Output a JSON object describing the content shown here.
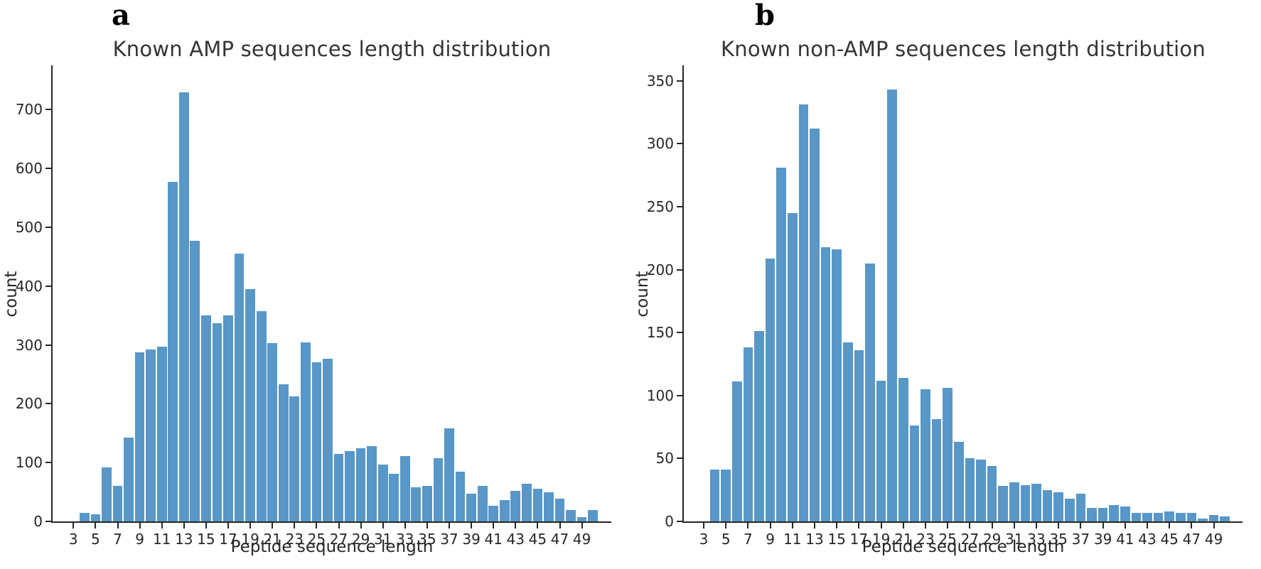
{
  "figure": {
    "background": "#ffffff",
    "text_color": "#262626",
    "bar_color": "#5897c7",
    "panels": [
      {
        "letter": "a"
      },
      {
        "letter": "b"
      }
    ]
  },
  "chart_data": [
    {
      "type": "bar",
      "title": "Known AMP sequences length distribution",
      "xlabel": "Peptide sequence length",
      "ylabel": "count",
      "bar_color": "#5897c7",
      "x": [
        4,
        5,
        6,
        7,
        8,
        9,
        10,
        11,
        12,
        13,
        14,
        15,
        16,
        17,
        18,
        19,
        20,
        21,
        22,
        23,
        24,
        25,
        26,
        27,
        28,
        29,
        30,
        31,
        32,
        33,
        34,
        35,
        36,
        37,
        38,
        39,
        40,
        41,
        42,
        43,
        44,
        45,
        46,
        47,
        48,
        49,
        50
      ],
      "values": [
        15,
        12,
        92,
        60,
        142,
        288,
        292,
        297,
        577,
        730,
        477,
        350,
        337,
        350,
        455,
        395,
        358,
        303,
        233,
        212,
        304,
        270,
        277,
        115,
        119,
        125,
        128,
        97,
        81,
        111,
        58,
        60,
        107,
        158,
        85,
        47,
        60,
        27,
        36,
        52,
        64,
        56,
        49,
        39,
        19,
        7,
        19
      ],
      "xticks": [
        3,
        5,
        7,
        9,
        11,
        13,
        15,
        17,
        19,
        21,
        23,
        25,
        27,
        29,
        31,
        33,
        35,
        37,
        39,
        41,
        43,
        45,
        47,
        49
      ],
      "yticks": [
        0,
        100,
        200,
        300,
        400,
        500,
        600,
        700
      ],
      "ylim": [
        0,
        775
      ],
      "xlim": [
        2.5,
        51.5
      ],
      "grid": false,
      "legend": null
    },
    {
      "type": "bar",
      "title": "Known non-AMP sequences length distribution",
      "xlabel": "Peptide sequence length",
      "ylabel": "count",
      "bar_color": "#5897c7",
      "x": [
        4,
        5,
        6,
        7,
        8,
        9,
        10,
        11,
        12,
        13,
        14,
        15,
        16,
        17,
        18,
        19,
        20,
        21,
        22,
        23,
        24,
        25,
        26,
        27,
        28,
        29,
        30,
        31,
        32,
        33,
        34,
        35,
        36,
        37,
        38,
        39,
        40,
        41,
        42,
        43,
        44,
        45,
        46,
        47,
        48,
        49,
        50
      ],
      "values": [
        41,
        41,
        111,
        138,
        151,
        209,
        281,
        245,
        331,
        312,
        218,
        216,
        142,
        136,
        205,
        112,
        343,
        114,
        76,
        105,
        81,
        106,
        63,
        50,
        49,
        44,
        28,
        31,
        29,
        30,
        25,
        23,
        18,
        22,
        11,
        11,
        13,
        12,
        7,
        7,
        7,
        8,
        7,
        7,
        2,
        5,
        4
      ],
      "xticks": [
        3,
        5,
        7,
        9,
        11,
        13,
        15,
        17,
        19,
        21,
        23,
        25,
        27,
        29,
        31,
        33,
        35,
        37,
        39,
        41,
        43,
        45,
        47,
        49
      ],
      "yticks": [
        0,
        50,
        100,
        150,
        200,
        250,
        300,
        350
      ],
      "ylim": [
        0,
        362
      ],
      "xlim": [
        2.5,
        51.5
      ],
      "grid": false,
      "legend": null
    }
  ]
}
